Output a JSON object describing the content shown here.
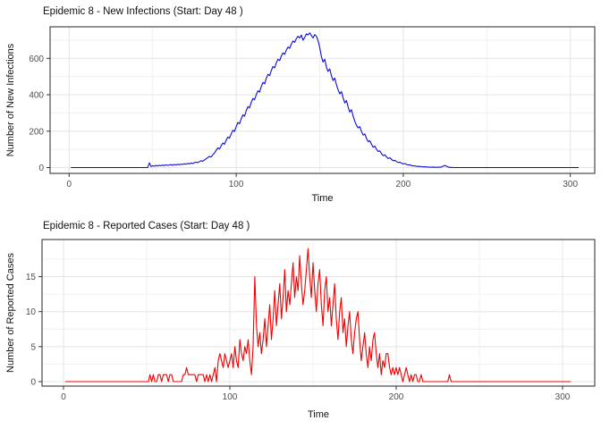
{
  "chart_data": [
    {
      "type": "line",
      "title": "Epidemic 8 - New Infections (Start: Day 48 )",
      "xlabel": "Time",
      "ylabel": "Number of New Infections",
      "line_color": "#0b0bdb",
      "grid": true,
      "legend": "none",
      "x_ticks": [
        0,
        100,
        200,
        300
      ],
      "x_minor_ticks": [
        50,
        150,
        250
      ],
      "y_ticks": [
        0,
        200,
        400,
        600
      ],
      "y_minor_ticks": [
        100,
        300,
        500,
        700
      ],
      "xlim": [
        -11,
        315
      ],
      "ylim": [
        -32,
        775
      ],
      "x_start": 1,
      "x_step": 1,
      "values": [
        0,
        0,
        0,
        0,
        0,
        0,
        0,
        0,
        0,
        0,
        0,
        0,
        0,
        0,
        0,
        0,
        0,
        0,
        0,
        0,
        0,
        0,
        0,
        0,
        0,
        0,
        0,
        0,
        0,
        0,
        0,
        0,
        0,
        0,
        0,
        0,
        0,
        0,
        0,
        0,
        0,
        0,
        0,
        0,
        0,
        0,
        0,
        26,
        6,
        10,
        8,
        12,
        9,
        13,
        10,
        14,
        11,
        15,
        12,
        14,
        16,
        13,
        17,
        14,
        18,
        15,
        19,
        17,
        21,
        18,
        23,
        20,
        25,
        22,
        27,
        30,
        27,
        33,
        38,
        35,
        42,
        48,
        55,
        62,
        58,
        70,
        80,
        95,
        108,
        102,
        120,
        135,
        128,
        150,
        168,
        162,
        185,
        205,
        198,
        225,
        248,
        240,
        268,
        290,
        282,
        312,
        335,
        328,
        358,
        380,
        372,
        400,
        422,
        415,
        445,
        468,
        460,
        490,
        512,
        505,
        532,
        555,
        548,
        575,
        595,
        588,
        612,
        630,
        622,
        645,
        662,
        655,
        678,
        695,
        688,
        708,
        722,
        712,
        728,
        700,
        715,
        735,
        728,
        740,
        725,
        712,
        730,
        722,
        698,
        660,
        610,
        580,
        595,
        552,
        528,
        542,
        505,
        478,
        492,
        455,
        428,
        405,
        418,
        382,
        355,
        368,
        332,
        305,
        318,
        282,
        255,
        232,
        218,
        225,
        198,
        178,
        185,
        160,
        142,
        148,
        128,
        112,
        118,
        100,
        88,
        92,
        76,
        66,
        70,
        58,
        50,
        54,
        44,
        38,
        40,
        33,
        28,
        30,
        24,
        20,
        22,
        17,
        14,
        15,
        11,
        9,
        10,
        7,
        6,
        7,
        5,
        4,
        5,
        3,
        3,
        2,
        2,
        3,
        2,
        1,
        2,
        2,
        4,
        9,
        12,
        7,
        3,
        1,
        1,
        0,
        0,
        0,
        0,
        0,
        0,
        0,
        0,
        0,
        0,
        0,
        0,
        0,
        0,
        0,
        0,
        0,
        0,
        0,
        0,
        0,
        0,
        0,
        0,
        0,
        0,
        0,
        0,
        0,
        0,
        0,
        0,
        0,
        0,
        0,
        0,
        0,
        0,
        0,
        0,
        0,
        0,
        0,
        0,
        0,
        0,
        0,
        0,
        0,
        0,
        0,
        0,
        0,
        0,
        0,
        0,
        0,
        0,
        0,
        0,
        0,
        0,
        0,
        0,
        0,
        0,
        0,
        0,
        0,
        0,
        0,
        0,
        0,
        0,
        0,
        0
      ]
    },
    {
      "type": "line",
      "title": "Epidemic 8 - Reported Cases (Start: Day 48 )",
      "xlabel": "Time",
      "ylabel": "Number of Reported Cases",
      "line_color": "#f20000",
      "grid": true,
      "legend": "none",
      "x_ticks": [
        0,
        100,
        200,
        300
      ],
      "x_minor_ticks": [
        50,
        150,
        250
      ],
      "y_ticks": [
        0,
        5,
        10,
        15
      ],
      "y_minor_ticks": [
        2.5,
        7.5,
        12.5,
        17.5
      ],
      "xlim": [
        -13,
        319
      ],
      "ylim": [
        -0.65,
        20.3
      ],
      "x_start": 1,
      "x_step": 1,
      "values": [
        0,
        0,
        0,
        0,
        0,
        0,
        0,
        0,
        0,
        0,
        0,
        0,
        0,
        0,
        0,
        0,
        0,
        0,
        0,
        0,
        0,
        0,
        0,
        0,
        0,
        0,
        0,
        0,
        0,
        0,
        0,
        0,
        0,
        0,
        0,
        0,
        0,
        0,
        0,
        0,
        0,
        0,
        0,
        0,
        0,
        0,
        0,
        0,
        0,
        0,
        0,
        1,
        0,
        1,
        0,
        0,
        1,
        1,
        0,
        1,
        1,
        1,
        0,
        1,
        1,
        0,
        0,
        0,
        0,
        0,
        0,
        1,
        1,
        2,
        1,
        1,
        1,
        1,
        1,
        0,
        1,
        1,
        1,
        1,
        0,
        1,
        0,
        1,
        0,
        1,
        2,
        0,
        3,
        4,
        3,
        2,
        4,
        3,
        2,
        3,
        4,
        2,
        5,
        3,
        2,
        6,
        4,
        3,
        5,
        4,
        6,
        3,
        1,
        5,
        15,
        8,
        5,
        7,
        4,
        6,
        9,
        5,
        8,
        11,
        6,
        9,
        13,
        8,
        11,
        14,
        9,
        12,
        16,
        10,
        13,
        11,
        14,
        17,
        12,
        15,
        13,
        18,
        14,
        11,
        13,
        16,
        19,
        15,
        12,
        17,
        13,
        10,
        14,
        16,
        11,
        8,
        13,
        15,
        10,
        12,
        8,
        11,
        14,
        9,
        6,
        10,
        12,
        7,
        9,
        5,
        8,
        10,
        6,
        4,
        7,
        9,
        10,
        6,
        3,
        5,
        7,
        4,
        2,
        5,
        3,
        6,
        7,
        4,
        2,
        4,
        1,
        3,
        2,
        4,
        4,
        2,
        1,
        2,
        1,
        2,
        1,
        2,
        1,
        0,
        1,
        2,
        1,
        0,
        1,
        0,
        1,
        1,
        0,
        0,
        1,
        0,
        0,
        0,
        0,
        0,
        0,
        0,
        0,
        0,
        0,
        0,
        0,
        0,
        0,
        0,
        0,
        1,
        0,
        0,
        0,
        0,
        0,
        0,
        0,
        0,
        0,
        0,
        0,
        0,
        0,
        0,
        0,
        0,
        0,
        0,
        0,
        0,
        0,
        0,
        0,
        0,
        0,
        0,
        0,
        0,
        0,
        0,
        0,
        0,
        0,
        0,
        0,
        0,
        0,
        0,
        0,
        0,
        0,
        0,
        0,
        0,
        0,
        0,
        0,
        0,
        0,
        0,
        0,
        0,
        0,
        0,
        0,
        0,
        0,
        0,
        0,
        0,
        0,
        0,
        0,
        0,
        0,
        0,
        0,
        0,
        0,
        0,
        0,
        0,
        0
      ]
    }
  ]
}
